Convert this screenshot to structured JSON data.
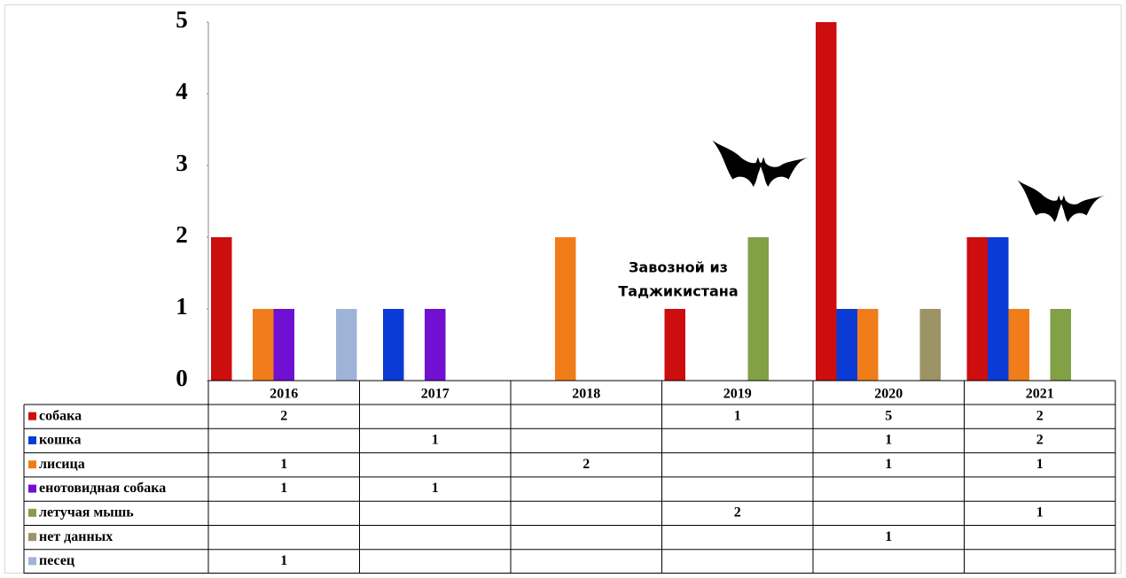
{
  "chart_data": {
    "type": "bar",
    "categories": [
      "2016",
      "2017",
      "2018",
      "2019",
      "2020",
      "2021"
    ],
    "series": [
      {
        "name": "собака",
        "color": "#cc0e0e",
        "values": [
          2,
          null,
          null,
          1,
          5,
          2
        ]
      },
      {
        "name": "кошка",
        "color": "#0b3bd6",
        "values": [
          null,
          1,
          null,
          null,
          1,
          2
        ]
      },
      {
        "name": "лисица",
        "color": "#f07d1a",
        "values": [
          1,
          null,
          2,
          null,
          1,
          1
        ]
      },
      {
        "name": "енотовидная собака",
        "color": "#7010d0",
        "values": [
          1,
          1,
          null,
          null,
          null,
          null
        ]
      },
      {
        "name": "летучая мышь",
        "color": "#82a046",
        "values": [
          null,
          null,
          null,
          2,
          null,
          1
        ]
      },
      {
        "name": "нет данных",
        "color": "#9c9367",
        "values": [
          null,
          null,
          null,
          null,
          1,
          null
        ]
      },
      {
        "name": "песец",
        "color": "#9fb3d9",
        "values": [
          1,
          null,
          null,
          null,
          null,
          null
        ]
      }
    ],
    "ylim": [
      0,
      5
    ],
    "yticks": [
      0,
      1,
      2,
      3,
      4,
      5
    ],
    "annotation": [
      "Завозной из",
      "Таджикистана"
    ]
  }
}
